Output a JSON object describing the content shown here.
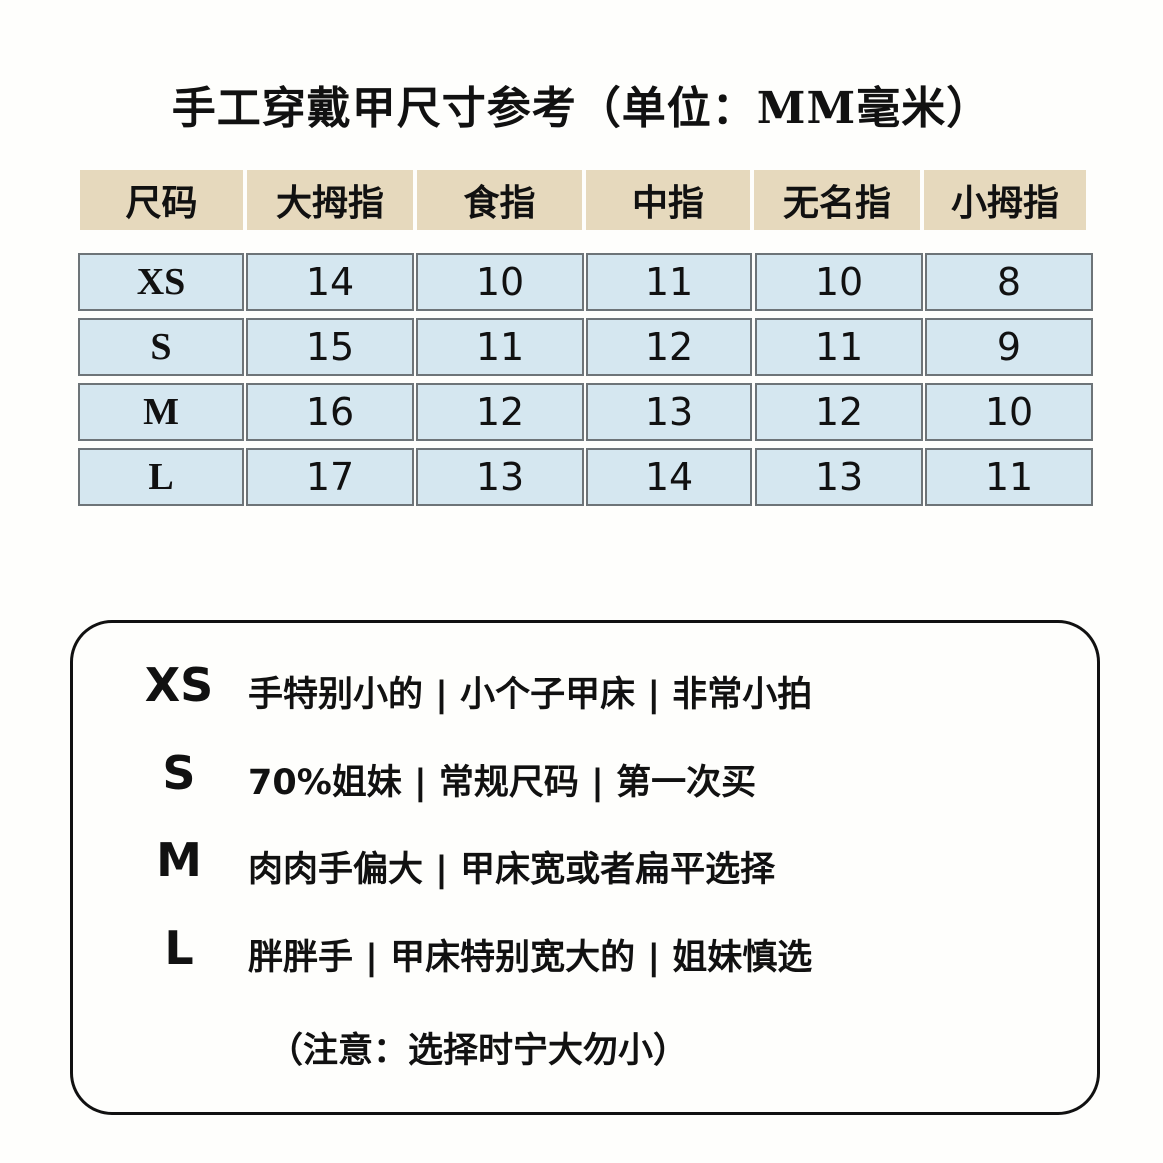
{
  "title": "手工穿戴甲尺寸参考（单位：MM毫米）",
  "colors": {
    "header_bg": "#e6d9bd",
    "cell_bg": "#d5e7f0",
    "border": "#6d7478"
  },
  "table": {
    "headers": [
      "尺码",
      "大拇指",
      "食指",
      "中指",
      "无名指",
      "小拇指"
    ],
    "rows": [
      [
        "XS",
        "14",
        "10",
        "11",
        "10",
        "8"
      ],
      [
        "S",
        "15",
        "11",
        "12",
        "11",
        "9"
      ],
      [
        "M",
        "16",
        "12",
        "13",
        "12",
        "10"
      ],
      [
        "L",
        "17",
        "13",
        "14",
        "13",
        "11"
      ]
    ]
  },
  "guide": {
    "items": [
      {
        "size": "XS",
        "text": "手特别小的 | 小个子甲床 | 非常小拍"
      },
      {
        "size": "S",
        "text": "70%姐妹 | 常规尺码 | 第一次买"
      },
      {
        "size": "M",
        "text": "肉肉手偏大 | 甲床宽或者扁平选择"
      },
      {
        "size": "L",
        "text": "胖胖手 | 甲床特别宽大的 | 姐妹慎选"
      }
    ],
    "note": "（注意：选择时宁大勿小）"
  }
}
